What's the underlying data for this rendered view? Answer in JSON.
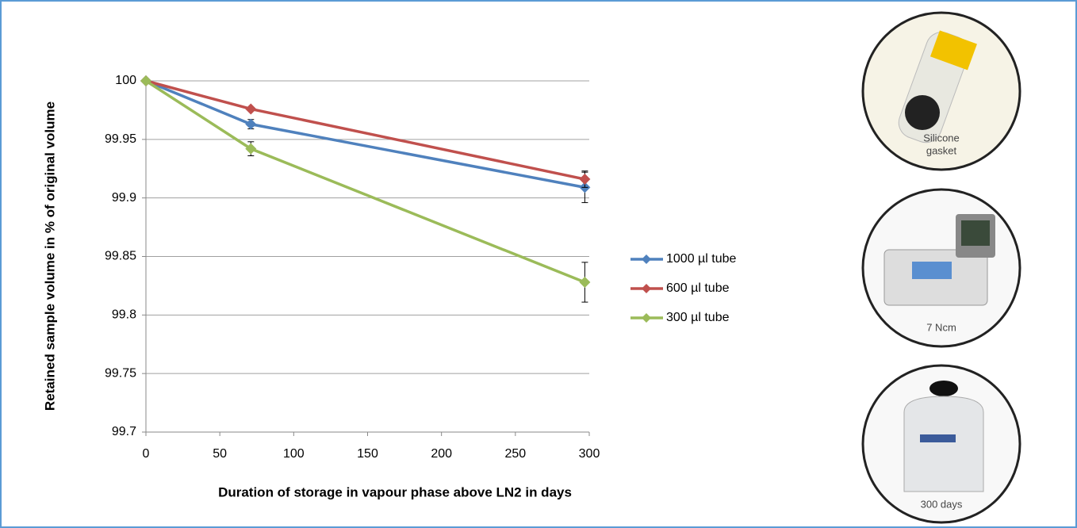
{
  "chart_data": {
    "type": "line",
    "xlabel": "Duration of storage in vapour phase above LN2 in days",
    "ylabel": "Retained sample volume in % of original volume",
    "x": [
      0,
      71,
      297
    ],
    "series": [
      {
        "name": "1000 µl tube",
        "color": "#4f81bd",
        "values": [
          100,
          99.963,
          99.909
        ],
        "errors": [
          null,
          0.004,
          0.013
        ]
      },
      {
        "name": "600 µl tube",
        "color": "#c0504d",
        "values": [
          100,
          99.976,
          99.916
        ],
        "errors": [
          null,
          null,
          0.007
        ]
      },
      {
        "name": "300 µl tube",
        "color": "#9bbb59",
        "values": [
          100,
          99.942,
          99.828
        ],
        "errors": [
          null,
          0.006,
          0.017
        ]
      }
    ],
    "xlim": [
      0,
      300
    ],
    "xticks": [
      0,
      50,
      100,
      150,
      200,
      250,
      300
    ],
    "ylim": [
      99.7,
      100
    ],
    "yticks": [
      99.7,
      99.75,
      99.8,
      99.85,
      99.9,
      99.95,
      100
    ],
    "grid": true,
    "legend": "right"
  },
  "panels": [
    {
      "caption": [
        "Silicone",
        "gasket"
      ]
    },
    {
      "caption": [
        "7 Ncm"
      ]
    },
    {
      "caption": [
        "300 days"
      ]
    }
  ]
}
